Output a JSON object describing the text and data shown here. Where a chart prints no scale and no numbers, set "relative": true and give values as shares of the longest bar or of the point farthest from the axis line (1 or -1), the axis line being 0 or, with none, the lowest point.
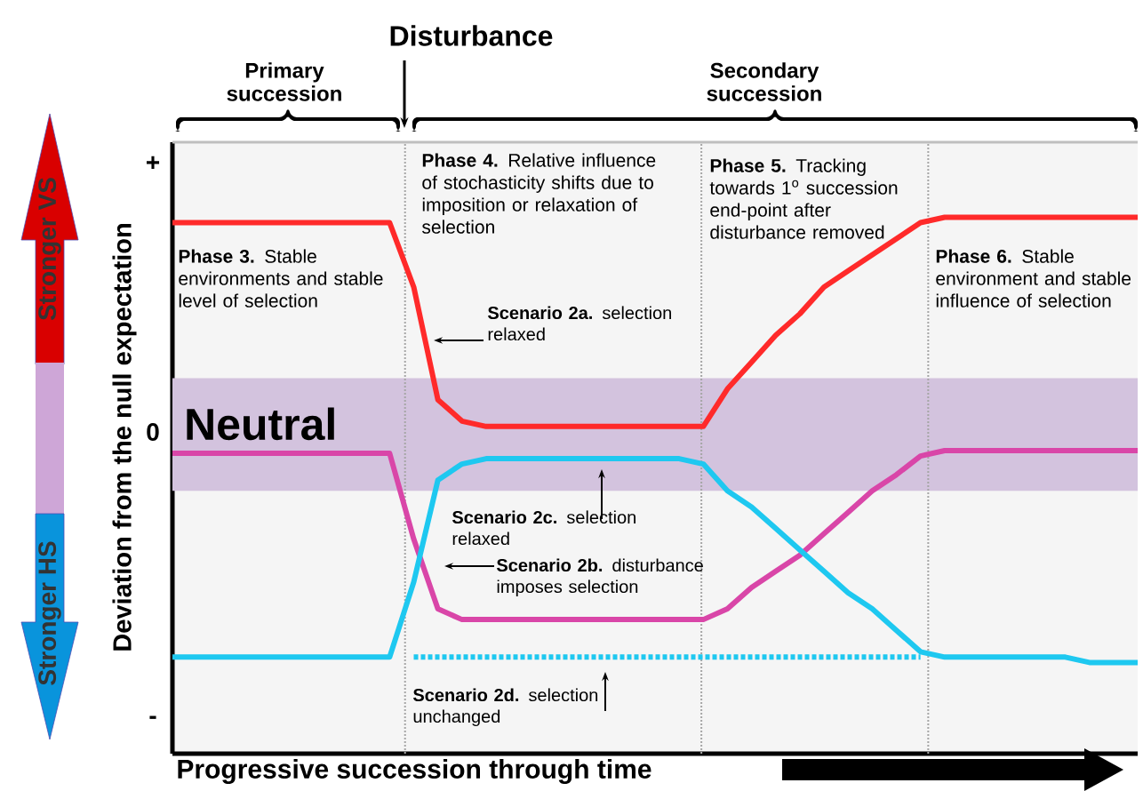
{
  "chart_data": {
    "type": "line",
    "relative": true,
    "xlabel": "Progressive succession through time",
    "ylabel": "Deviation from the null expectation",
    "categories": [
      null,
      null,
      null,
      null,
      null,
      null,
      null,
      null,
      null,
      null,
      null,
      null,
      null,
      null,
      null,
      null,
      null,
      null,
      null,
      null,
      null,
      null,
      null,
      null,
      null,
      null,
      null,
      null,
      null,
      null,
      null,
      null,
      null,
      null,
      null,
      null,
      null,
      null,
      null,
      null,
      null
    ],
    "tick_labels": false,
    "marker": "none",
    "bands": [
      {
        "axis": "y",
        "from": 0.49,
        "to": 0.7,
        "label": "Neutral",
        "color": "#d3c3de"
      }
    ],
    "series": [
      {
        "color": "#ff2a2a",
        "values": [
          0.99,
          0.99,
          0.99,
          0.99,
          0.99,
          0.99,
          0.99,
          0.99,
          0.99,
          0.99,
          0.87,
          0.66,
          0.62,
          0.61,
          0.61,
          0.61,
          0.61,
          0.61,
          0.61,
          0.61,
          0.61,
          0.61,
          0.61,
          0.68,
          0.73,
          0.78,
          0.82,
          0.87,
          0.9,
          0.93,
          0.96,
          0.99,
          1,
          1,
          1,
          1,
          1,
          1,
          1,
          1,
          1
        ]
      },
      {
        "color": "#d946a8",
        "values": [
          0.56,
          0.56,
          0.56,
          0.56,
          0.56,
          0.56,
          0.56,
          0.56,
          0.56,
          0.56,
          0.4,
          0.27,
          0.25,
          0.25,
          0.25,
          0.25,
          0.25,
          0.25,
          0.25,
          0.25,
          0.25,
          0.25,
          0.25,
          0.27,
          0.31,
          0.34,
          0.37,
          0.41,
          0.45,
          0.49,
          0.52,
          0.555,
          0.565,
          0.565,
          0.565,
          0.565,
          0.565,
          0.565,
          0.565,
          0.565,
          0.565
        ]
      },
      {
        "color": "#1ec8f0",
        "values": [
          0.18,
          0.18,
          0.18,
          0.18,
          0.18,
          0.18,
          0.18,
          0.18,
          0.18,
          0.18,
          0.32,
          0.51,
          0.54,
          0.55,
          0.55,
          0.55,
          0.55,
          0.55,
          0.55,
          0.55,
          0.55,
          0.55,
          0.54,
          0.49,
          0.46,
          0.42,
          0.38,
          0.34,
          0.3,
          0.27,
          0.23,
          0.19,
          0.18,
          0.18,
          0.18,
          0.18,
          0.18,
          0.18,
          0.17,
          0.17,
          0.17
        ]
      },
      {
        "color": "#1ec8f0",
        "line_style": "dotted",
        "values": [
          null,
          null,
          null,
          null,
          null,
          null,
          null,
          null,
          null,
          null,
          0.18,
          0.18,
          0.18,
          0.18,
          0.18,
          0.18,
          0.18,
          0.18,
          0.18,
          0.18,
          0.18,
          0.18,
          0.18,
          0.18,
          0.18,
          0.18,
          0.18,
          0.18,
          0.18,
          0.18,
          0.18,
          0.18,
          null,
          null,
          null,
          null,
          null,
          null,
          null,
          null,
          null
        ]
      }
    ],
    "annotations": [
      "Primary succession",
      "Disturbance",
      "Secondary succession",
      "Stronger VS",
      "Stronger HS",
      "**Phase 3.** Stable environments and stable level of selection",
      "**Phase 4.** Relative influence of stochasticity shifts due to imposition or relaxation of selection",
      "**Phase 5.** Tracking towards 1$^{o}$ succession end-point after disturbance removed",
      "**Phase 6.** Stable environment and stable influence of selection",
      "**Scenario 2a.** selection relaxed",
      "**Scenario 2c.** selection relaxed",
      "**Scenario 2b.** disturbance imposes selection",
      "**Scenario 2d.** selection unchanged",
      "+",
      "0",
      "-"
    ]
  }
}
